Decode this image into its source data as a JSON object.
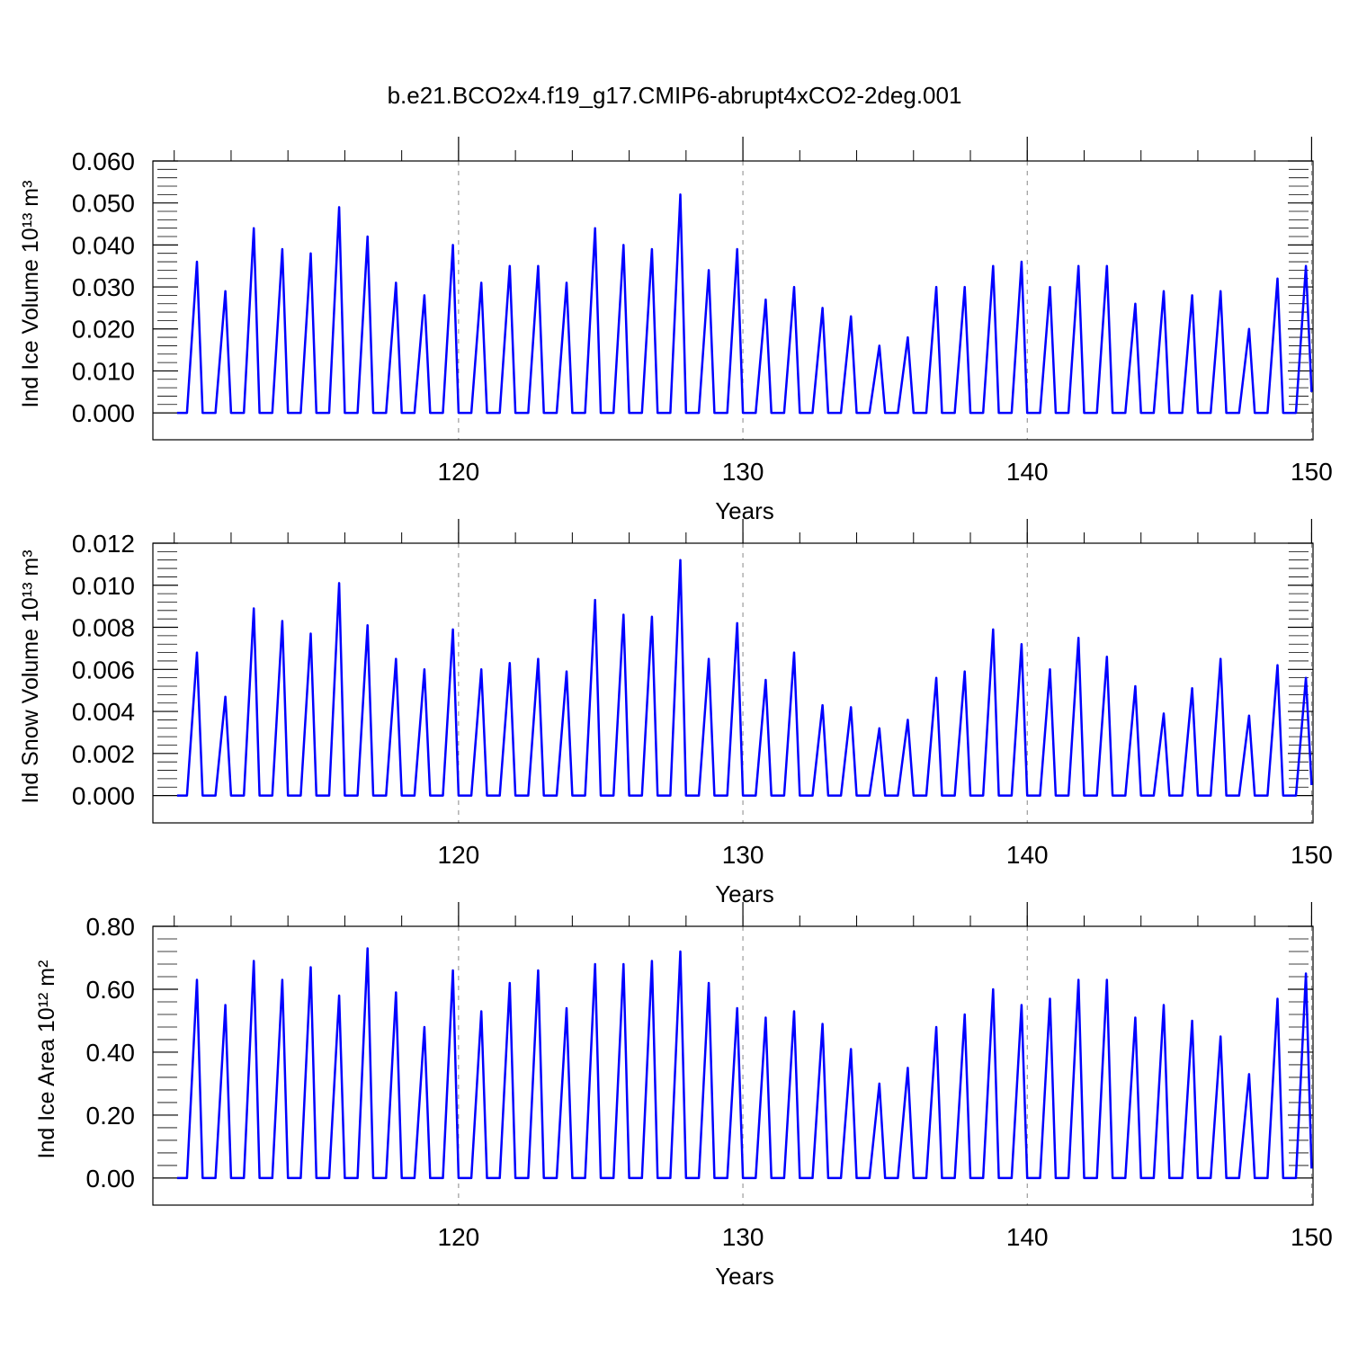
{
  "chart_data": [
    {
      "type": "line",
      "title": "b.e21.BCO2x4.f19_g17.CMIP6-abrupt4xCO2-2deg.001",
      "x_label": "Years",
      "y_label": "Ind Ice Volume 10¹³ m³",
      "color": "#0000ff",
      "xgrid": true,
      "xlim": [
        109.25,
        150.05
      ],
      "xticks": [
        120,
        130,
        140,
        150
      ],
      "ylim": [
        -0.0064,
        0.06
      ],
      "yticks": [
        {
          "value": 0,
          "label": "0.000"
        },
        {
          "value": 0.01,
          "label": "0.010"
        },
        {
          "value": 0.02,
          "label": "0.020"
        },
        {
          "value": 0.03,
          "label": "0.030"
        },
        {
          "value": 0.04,
          "label": "0.040"
        },
        {
          "value": 0.05,
          "label": "0.050"
        },
        {
          "value": 0.06,
          "label": "0.060"
        }
      ],
      "x": [
        110.1,
        110.45,
        110.8,
        111,
        111.45,
        111.8,
        112,
        112.45,
        112.8,
        113,
        113.45,
        113.8,
        114,
        114.45,
        114.8,
        115,
        115.45,
        115.8,
        116,
        116.45,
        116.8,
        117,
        117.45,
        117.8,
        118,
        118.45,
        118.8,
        119,
        119.45,
        119.8,
        120,
        120.45,
        120.8,
        121,
        121.45,
        121.8,
        122,
        122.45,
        122.8,
        123,
        123.45,
        123.8,
        124,
        124.45,
        124.8,
        125,
        125.45,
        125.8,
        126,
        126.45,
        126.8,
        127,
        127.45,
        127.8,
        128,
        128.45,
        128.8,
        129,
        129.45,
        129.8,
        130,
        130.45,
        130.8,
        131,
        131.45,
        131.8,
        132,
        132.45,
        132.8,
        133,
        133.45,
        133.8,
        134,
        134.45,
        134.8,
        135,
        135.45,
        135.8,
        136,
        136.45,
        136.8,
        137,
        137.45,
        137.8,
        138,
        138.45,
        138.8,
        139,
        139.45,
        139.8,
        140,
        140.45,
        140.8,
        141,
        141.45,
        141.8,
        142,
        142.45,
        142.8,
        143,
        143.45,
        143.8,
        144,
        144.45,
        144.8,
        145,
        145.45,
        145.8,
        146,
        146.45,
        146.8,
        147,
        147.45,
        147.8,
        148,
        148.45,
        148.8,
        149,
        149.45,
        149.8,
        150
      ],
      "values": [
        0,
        0,
        0.036,
        0,
        0,
        0.029,
        0,
        0,
        0.044,
        0,
        0,
        0.039,
        0,
        0,
        0.038,
        0,
        0,
        0.049,
        0,
        0,
        0.042,
        0,
        0,
        0.031,
        0,
        0,
        0.028,
        0,
        0,
        0.04,
        0,
        0,
        0.031,
        0,
        0,
        0.035,
        0,
        0,
        0.035,
        0,
        0,
        0.031,
        0,
        0,
        0.044,
        0,
        0,
        0.04,
        0,
        0,
        0.039,
        0,
        0,
        0.052,
        0,
        0,
        0.034,
        0,
        0,
        0.039,
        0,
        0,
        0.027,
        0,
        0,
        0.03,
        0,
        0,
        0.025,
        0,
        0,
        0.023,
        0,
        0,
        0.016,
        0,
        0,
        0.018,
        0,
        0,
        0.03,
        0,
        0,
        0.03,
        0,
        0,
        0.035,
        0,
        0,
        0.036,
        0,
        0,
        0.03,
        0,
        0,
        0.035,
        0,
        0,
        0.035,
        0,
        0,
        0.026,
        0,
        0,
        0.029,
        0,
        0,
        0.028,
        0,
        0,
        0.029,
        0,
        0,
        0.02,
        0,
        0,
        0.032,
        0,
        0,
        0.035,
        0.005
      ]
    },
    {
      "type": "line",
      "x_label": "Years",
      "y_label": "Ind Snow Volume 10¹³ m³",
      "color": "#0000ff",
      "xgrid": true,
      "xlim": [
        109.25,
        150.05
      ],
      "xticks": [
        120,
        130,
        140,
        150
      ],
      "ylim": [
        -0.0013,
        0.012
      ],
      "yticks": [
        {
          "value": 0,
          "label": "0.000"
        },
        {
          "value": 0.002,
          "label": "0.002"
        },
        {
          "value": 0.004,
          "label": "0.004"
        },
        {
          "value": 0.006,
          "label": "0.006"
        },
        {
          "value": 0.008,
          "label": "0.008"
        },
        {
          "value": 0.01,
          "label": "0.010"
        },
        {
          "value": 0.012,
          "label": "0.012"
        }
      ],
      "x": [
        110.1,
        110.45,
        110.8,
        111,
        111.45,
        111.8,
        112,
        112.45,
        112.8,
        113,
        113.45,
        113.8,
        114,
        114.45,
        114.8,
        115,
        115.45,
        115.8,
        116,
        116.45,
        116.8,
        117,
        117.45,
        117.8,
        118,
        118.45,
        118.8,
        119,
        119.45,
        119.8,
        120,
        120.45,
        120.8,
        121,
        121.45,
        121.8,
        122,
        122.45,
        122.8,
        123,
        123.45,
        123.8,
        124,
        124.45,
        124.8,
        125,
        125.45,
        125.8,
        126,
        126.45,
        126.8,
        127,
        127.45,
        127.8,
        128,
        128.45,
        128.8,
        129,
        129.45,
        129.8,
        130,
        130.45,
        130.8,
        131,
        131.45,
        131.8,
        132,
        132.45,
        132.8,
        133,
        133.45,
        133.8,
        134,
        134.45,
        134.8,
        135,
        135.45,
        135.8,
        136,
        136.45,
        136.8,
        137,
        137.45,
        137.8,
        138,
        138.45,
        138.8,
        139,
        139.45,
        139.8,
        140,
        140.45,
        140.8,
        141,
        141.45,
        141.8,
        142,
        142.45,
        142.8,
        143,
        143.45,
        143.8,
        144,
        144.45,
        144.8,
        145,
        145.45,
        145.8,
        146,
        146.45,
        146.8,
        147,
        147.45,
        147.8,
        148,
        148.45,
        148.8,
        149,
        149.45,
        149.8,
        150
      ],
      "values": [
        0,
        0,
        0.0068,
        0,
        0,
        0.0047,
        0,
        0,
        0.0089,
        0,
        0,
        0.0083,
        0,
        0,
        0.0077,
        0,
        0,
        0.0101,
        0,
        0,
        0.0081,
        0,
        0,
        0.0065,
        0,
        0,
        0.006,
        0,
        0,
        0.0079,
        0,
        0,
        0.006,
        0,
        0,
        0.0063,
        0,
        0,
        0.0065,
        0,
        0,
        0.0059,
        0,
        0,
        0.0093,
        0,
        0,
        0.0086,
        0,
        0,
        0.0085,
        0,
        0,
        0.0112,
        0,
        0,
        0.0065,
        0,
        0,
        0.0082,
        0,
        0,
        0.0055,
        0,
        0,
        0.0068,
        0,
        0,
        0.0043,
        0,
        0,
        0.0042,
        0,
        0,
        0.0032,
        0,
        0,
        0.0036,
        0,
        0,
        0.0056,
        0,
        0,
        0.0059,
        0,
        0,
        0.0079,
        0,
        0,
        0.0072,
        0,
        0,
        0.006,
        0,
        0,
        0.0075,
        0,
        0,
        0.0066,
        0,
        0,
        0.0052,
        0,
        0,
        0.0039,
        0,
        0,
        0.0051,
        0,
        0,
        0.0065,
        0,
        0,
        0.0038,
        0,
        0,
        0.0062,
        0,
        0,
        0.0056,
        0.0005
      ]
    },
    {
      "type": "line",
      "x_label": "Years",
      "y_label": "Ind Ice Area 10¹² m²",
      "color": "#0000ff",
      "xgrid": true,
      "xlim": [
        109.25,
        150.05
      ],
      "xticks": [
        120,
        130,
        140,
        150
      ],
      "ylim": [
        -0.086,
        0.8
      ],
      "yticks": [
        {
          "value": 0,
          "label": "0.00"
        },
        {
          "value": 0.2,
          "label": "0.20"
        },
        {
          "value": 0.4,
          "label": "0.40"
        },
        {
          "value": 0.6,
          "label": "0.60"
        },
        {
          "value": 0.8,
          "label": "0.80"
        }
      ],
      "x": [
        110.1,
        110.45,
        110.8,
        111,
        111.45,
        111.8,
        112,
        112.45,
        112.8,
        113,
        113.45,
        113.8,
        114,
        114.45,
        114.8,
        115,
        115.45,
        115.8,
        116,
        116.45,
        116.8,
        117,
        117.45,
        117.8,
        118,
        118.45,
        118.8,
        119,
        119.45,
        119.8,
        120,
        120.45,
        120.8,
        121,
        121.45,
        121.8,
        122,
        122.45,
        122.8,
        123,
        123.45,
        123.8,
        124,
        124.45,
        124.8,
        125,
        125.45,
        125.8,
        126,
        126.45,
        126.8,
        127,
        127.45,
        127.8,
        128,
        128.45,
        128.8,
        129,
        129.45,
        129.8,
        130,
        130.45,
        130.8,
        131,
        131.45,
        131.8,
        132,
        132.45,
        132.8,
        133,
        133.45,
        133.8,
        134,
        134.45,
        134.8,
        135,
        135.45,
        135.8,
        136,
        136.45,
        136.8,
        137,
        137.45,
        137.8,
        138,
        138.45,
        138.8,
        139,
        139.45,
        139.8,
        140,
        140.45,
        140.8,
        141,
        141.45,
        141.8,
        142,
        142.45,
        142.8,
        143,
        143.45,
        143.8,
        144,
        144.45,
        144.8,
        145,
        145.45,
        145.8,
        146,
        146.45,
        146.8,
        147,
        147.45,
        147.8,
        148,
        148.45,
        148.8,
        149,
        149.45,
        149.8,
        150
      ],
      "values": [
        0,
        0,
        0.63,
        0,
        0,
        0.55,
        0,
        0,
        0.69,
        0,
        0,
        0.63,
        0,
        0,
        0.67,
        0,
        0,
        0.58,
        0,
        0,
        0.73,
        0,
        0,
        0.59,
        0,
        0,
        0.48,
        0,
        0,
        0.66,
        0,
        0,
        0.53,
        0,
        0,
        0.62,
        0,
        0,
        0.66,
        0,
        0,
        0.54,
        0,
        0,
        0.68,
        0,
        0,
        0.68,
        0,
        0,
        0.69,
        0,
        0,
        0.72,
        0,
        0,
        0.62,
        0,
        0,
        0.54,
        0,
        0,
        0.51,
        0,
        0,
        0.53,
        0,
        0,
        0.49,
        0,
        0,
        0.41,
        0,
        0,
        0.3,
        0,
        0,
        0.35,
        0,
        0,
        0.48,
        0,
        0,
        0.52,
        0,
        0,
        0.6,
        0,
        0,
        0.55,
        0,
        0,
        0.57,
        0,
        0,
        0.63,
        0,
        0,
        0.63,
        0,
        0,
        0.51,
        0,
        0,
        0.55,
        0,
        0,
        0.5,
        0,
        0,
        0.45,
        0,
        0,
        0.33,
        0,
        0,
        0.57,
        0,
        0,
        0.65,
        0.03
      ]
    }
  ]
}
